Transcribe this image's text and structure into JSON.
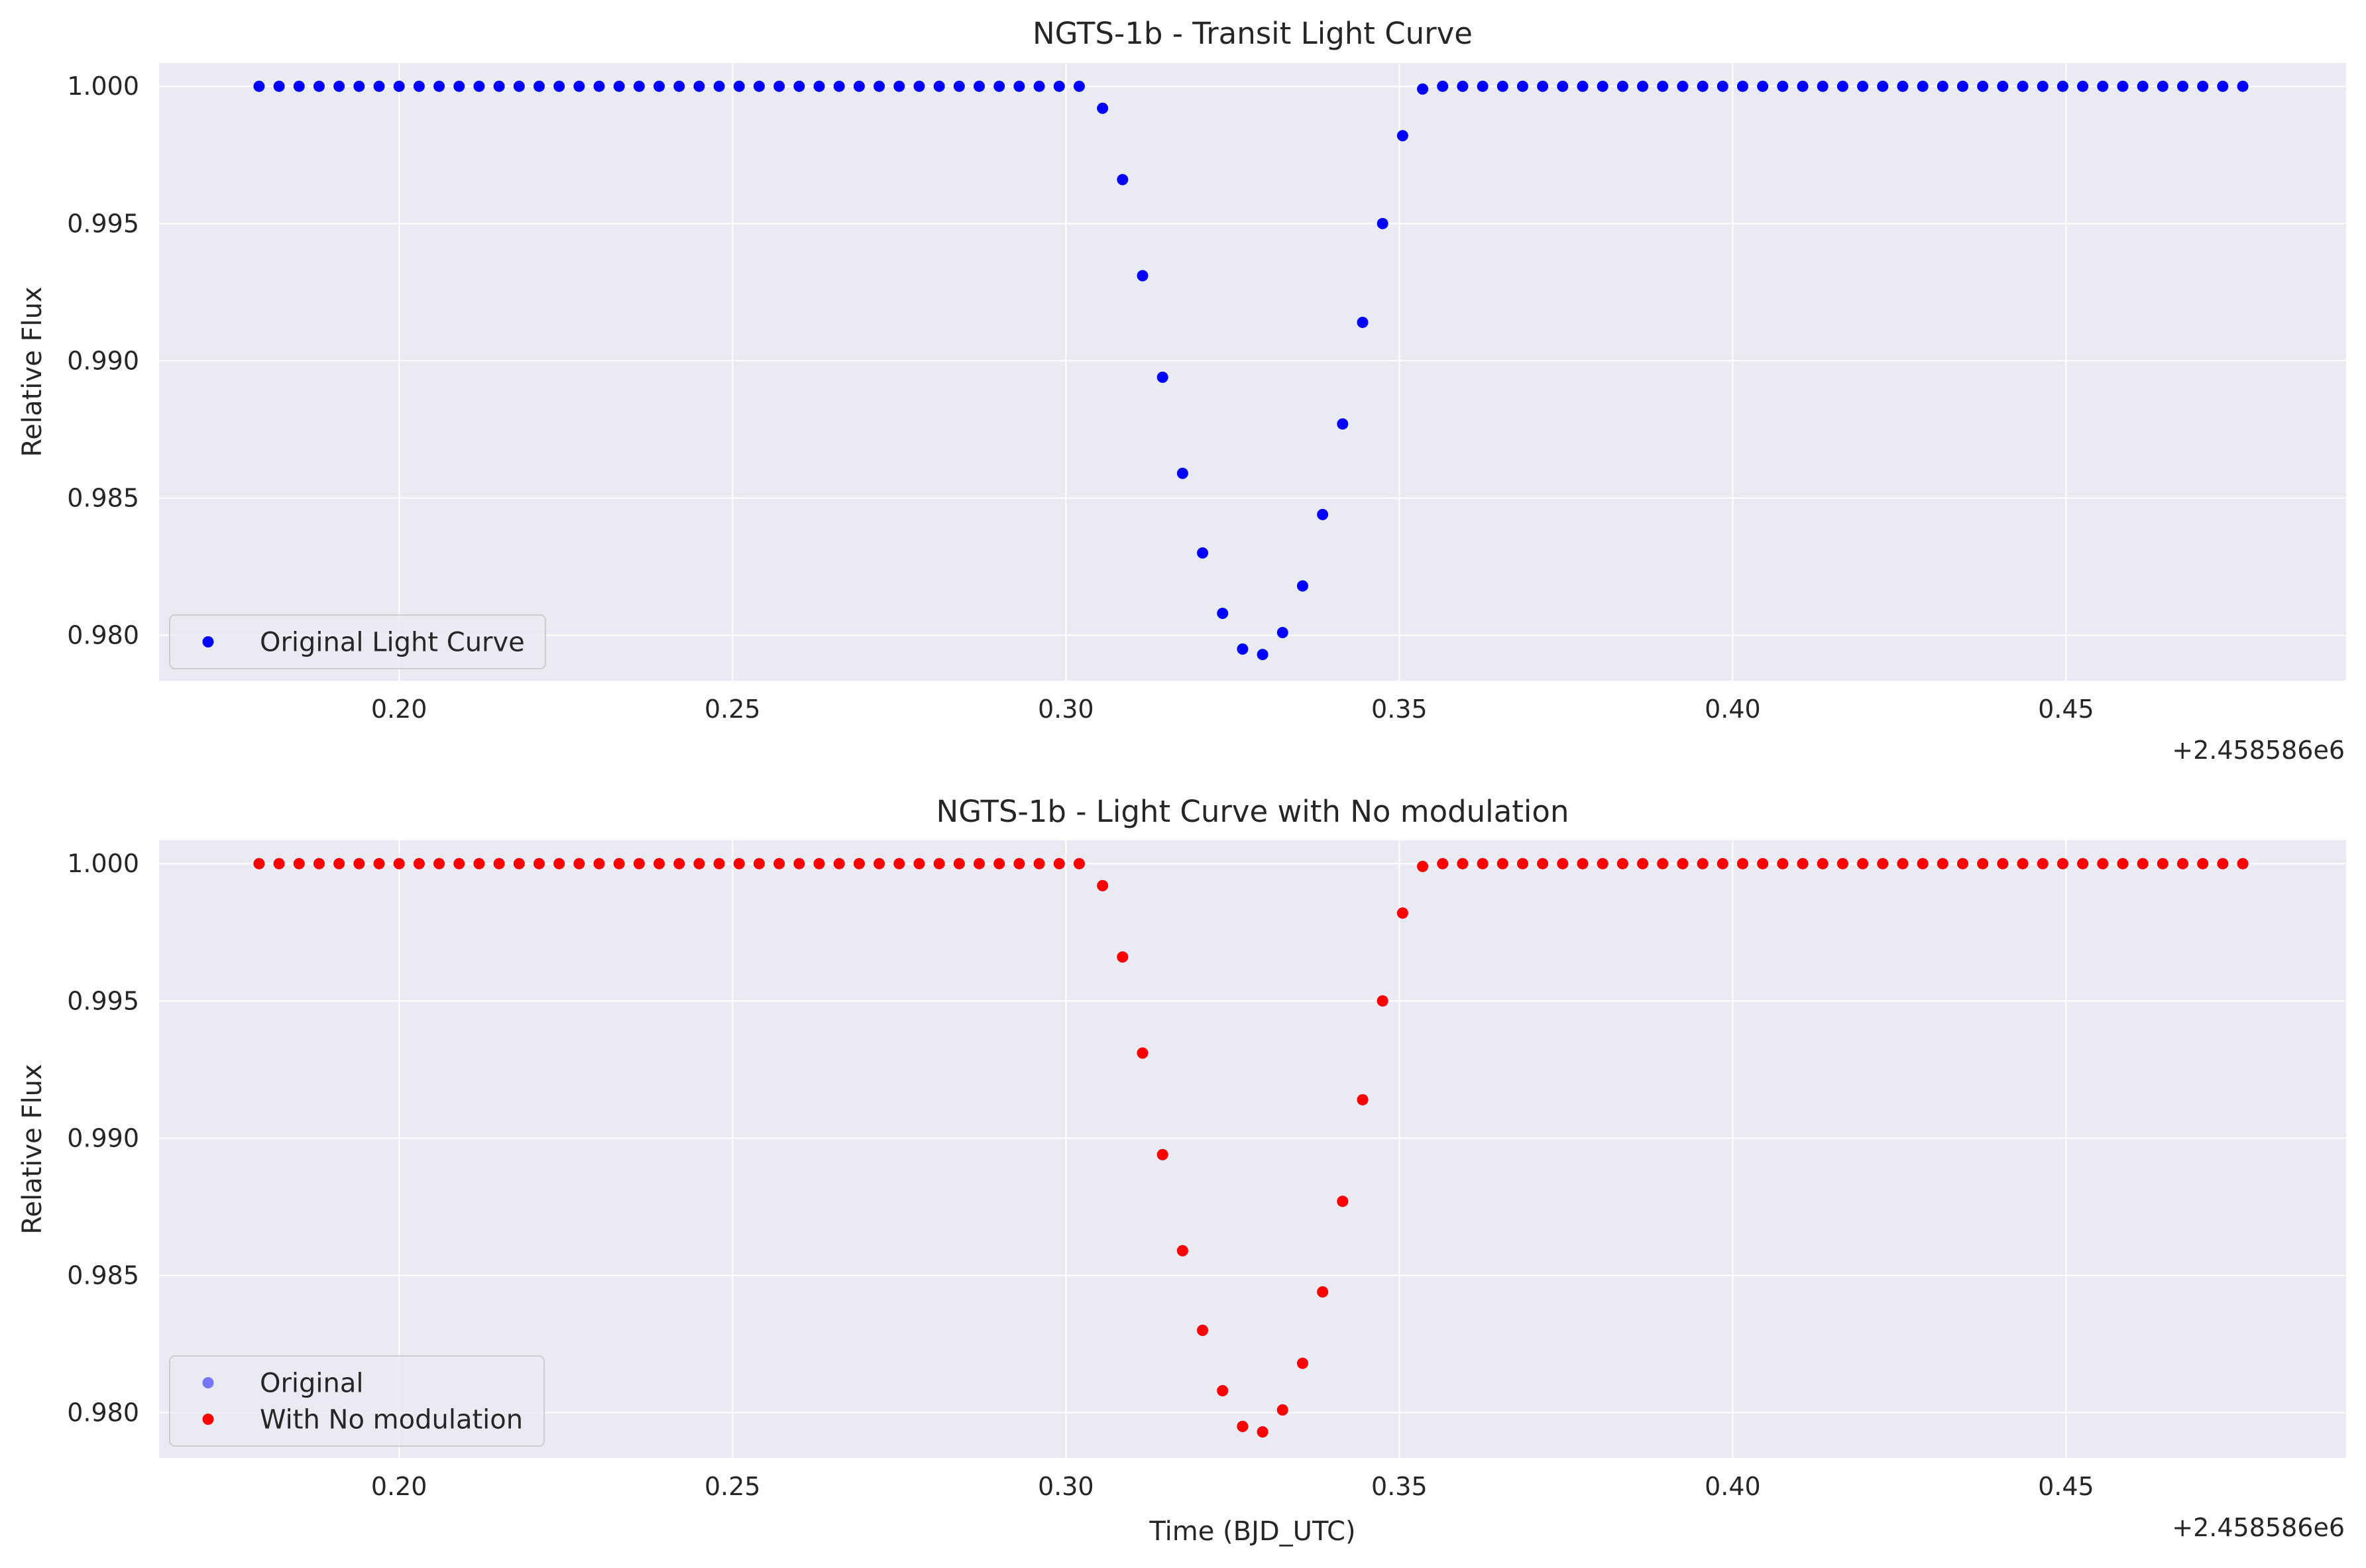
{
  "chart_data": [
    {
      "type": "scatter",
      "title": "NGTS-1b - Transit Light Curve",
      "xlabel": "",
      "ylabel": "Relative Flux",
      "x_offset_label": "+2.458586e6",
      "x_offset": 2458586,
      "xlim": [
        0.164,
        0.492
      ],
      "ylim": [
        0.97835,
        1.00085
      ],
      "xticks": [
        0.2,
        0.25,
        0.3,
        0.35,
        0.4,
        0.45
      ],
      "xtick_labels": [
        "0.20",
        "0.25",
        "0.30",
        "0.35",
        "0.40",
        "0.45"
      ],
      "yticks": [
        0.98,
        0.985,
        0.99,
        0.995,
        1.0
      ],
      "ytick_labels": [
        "0.980",
        "0.985",
        "0.990",
        "0.995",
        "1.000"
      ],
      "grid": true,
      "legend_position": "lower-left",
      "series": [
        {
          "name": "Original Light Curve",
          "color": "#0000ff",
          "x": [
            0.179,
            0.182,
            0.185,
            0.188,
            0.191,
            0.194,
            0.197,
            0.2,
            0.203,
            0.206,
            0.209,
            0.212,
            0.215,
            0.218,
            0.221,
            0.224,
            0.227,
            0.23,
            0.233,
            0.236,
            0.239,
            0.242,
            0.245,
            0.248,
            0.251,
            0.254,
            0.257,
            0.26,
            0.263,
            0.266,
            0.269,
            0.272,
            0.275,
            0.278,
            0.281,
            0.284,
            0.287,
            0.29,
            0.293,
            0.296,
            0.299,
            0.302,
            0.3055,
            0.3085,
            0.3115,
            0.3145,
            0.3175,
            0.3205,
            0.3235,
            0.3265,
            0.3295,
            0.3325,
            0.3355,
            0.3385,
            0.3415,
            0.3445,
            0.3475,
            0.3505,
            0.3535,
            0.3565,
            0.3595,
            0.3625,
            0.3655,
            0.3685,
            0.3715,
            0.3745,
            0.3775,
            0.3805,
            0.3835,
            0.3865,
            0.3895,
            0.3925,
            0.3955,
            0.3985,
            0.4015,
            0.4045,
            0.4075,
            0.4105,
            0.4135,
            0.4165,
            0.4195,
            0.4225,
            0.4255,
            0.4285,
            0.4315,
            0.4345,
            0.4375,
            0.4405,
            0.4435,
            0.4465,
            0.4495,
            0.4525,
            0.4555,
            0.4585,
            0.4615,
            0.4645,
            0.4675,
            0.4705,
            0.4735,
            0.4765
          ],
          "y": [
            1.0,
            1.0,
            1.0,
            1.0,
            1.0,
            1.0,
            1.0,
            1.0,
            1.0,
            1.0,
            1.0,
            1.0,
            1.0,
            1.0,
            1.0,
            1.0,
            1.0,
            1.0,
            1.0,
            1.0,
            1.0,
            1.0,
            1.0,
            1.0,
            1.0,
            1.0,
            1.0,
            1.0,
            1.0,
            1.0,
            1.0,
            1.0,
            1.0,
            1.0,
            1.0,
            1.0,
            1.0,
            1.0,
            1.0,
            1.0,
            1.0,
            1.0,
            0.9992,
            0.9966,
            0.9931,
            0.9894,
            0.9859,
            0.983,
            0.9808,
            0.9795,
            0.9793,
            0.9801,
            0.9818,
            0.9844,
            0.9877,
            0.9914,
            0.995,
            0.9982,
            0.9999,
            1.0,
            1.0,
            1.0,
            1.0,
            1.0,
            1.0,
            1.0,
            1.0,
            1.0,
            1.0,
            1.0,
            1.0,
            1.0,
            1.0,
            1.0,
            1.0,
            1.0,
            1.0,
            1.0,
            1.0,
            1.0,
            1.0,
            1.0,
            1.0,
            1.0,
            1.0,
            1.0,
            1.0,
            1.0,
            1.0,
            1.0,
            1.0,
            1.0,
            1.0,
            1.0,
            1.0,
            1.0,
            1.0,
            1.0,
            1.0,
            1.0
          ]
        }
      ]
    },
    {
      "type": "scatter",
      "title": "NGTS-1b - Light Curve with No modulation",
      "xlabel": "Time (BJD_UTC)",
      "ylabel": "Relative Flux",
      "x_offset_label": "+2.458586e6",
      "x_offset": 2458586,
      "xlim": [
        0.164,
        0.492
      ],
      "ylim": [
        0.97835,
        1.00085
      ],
      "xticks": [
        0.2,
        0.25,
        0.3,
        0.35,
        0.4,
        0.45
      ],
      "xtick_labels": [
        "0.20",
        "0.25",
        "0.30",
        "0.35",
        "0.40",
        "0.45"
      ],
      "yticks": [
        0.98,
        0.985,
        0.99,
        0.995,
        1.0
      ],
      "ytick_labels": [
        "0.980",
        "0.985",
        "0.990",
        "0.995",
        "1.000"
      ],
      "grid": true,
      "legend_position": "lower-left",
      "series": [
        {
          "name": "Original",
          "color": "#0000ff",
          "opacity": 0.5,
          "x": [
            0.179,
            0.182,
            0.185,
            0.188,
            0.191,
            0.194,
            0.197,
            0.2,
            0.203,
            0.206,
            0.209,
            0.212,
            0.215,
            0.218,
            0.221,
            0.224,
            0.227,
            0.23,
            0.233,
            0.236,
            0.239,
            0.242,
            0.245,
            0.248,
            0.251,
            0.254,
            0.257,
            0.26,
            0.263,
            0.266,
            0.269,
            0.272,
            0.275,
            0.278,
            0.281,
            0.284,
            0.287,
            0.29,
            0.293,
            0.296,
            0.299,
            0.302,
            0.3055,
            0.3085,
            0.3115,
            0.3145,
            0.3175,
            0.3205,
            0.3235,
            0.3265,
            0.3295,
            0.3325,
            0.3355,
            0.3385,
            0.3415,
            0.3445,
            0.3475,
            0.3505,
            0.3535,
            0.3565,
            0.3595,
            0.3625,
            0.3655,
            0.3685,
            0.3715,
            0.3745,
            0.3775,
            0.3805,
            0.3835,
            0.3865,
            0.3895,
            0.3925,
            0.3955,
            0.3985,
            0.4015,
            0.4045,
            0.4075,
            0.4105,
            0.4135,
            0.4165,
            0.4195,
            0.4225,
            0.4255,
            0.4285,
            0.4315,
            0.4345,
            0.4375,
            0.4405,
            0.4435,
            0.4465,
            0.4495,
            0.4525,
            0.4555,
            0.4585,
            0.4615,
            0.4645,
            0.4675,
            0.4705,
            0.4735,
            0.4765
          ],
          "y": [
            1.0,
            1.0,
            1.0,
            1.0,
            1.0,
            1.0,
            1.0,
            1.0,
            1.0,
            1.0,
            1.0,
            1.0,
            1.0,
            1.0,
            1.0,
            1.0,
            1.0,
            1.0,
            1.0,
            1.0,
            1.0,
            1.0,
            1.0,
            1.0,
            1.0,
            1.0,
            1.0,
            1.0,
            1.0,
            1.0,
            1.0,
            1.0,
            1.0,
            1.0,
            1.0,
            1.0,
            1.0,
            1.0,
            1.0,
            1.0,
            1.0,
            1.0,
            0.9992,
            0.9966,
            0.9931,
            0.9894,
            0.9859,
            0.983,
            0.9808,
            0.9795,
            0.9793,
            0.9801,
            0.9818,
            0.9844,
            0.9877,
            0.9914,
            0.995,
            0.9982,
            0.9999,
            1.0,
            1.0,
            1.0,
            1.0,
            1.0,
            1.0,
            1.0,
            1.0,
            1.0,
            1.0,
            1.0,
            1.0,
            1.0,
            1.0,
            1.0,
            1.0,
            1.0,
            1.0,
            1.0,
            1.0,
            1.0,
            1.0,
            1.0,
            1.0,
            1.0,
            1.0,
            1.0,
            1.0,
            1.0,
            1.0,
            1.0,
            1.0,
            1.0,
            1.0,
            1.0,
            1.0,
            1.0,
            1.0,
            1.0,
            1.0,
            1.0
          ]
        },
        {
          "name": "With No modulation",
          "color": "#ff0000",
          "x": [
            0.179,
            0.182,
            0.185,
            0.188,
            0.191,
            0.194,
            0.197,
            0.2,
            0.203,
            0.206,
            0.209,
            0.212,
            0.215,
            0.218,
            0.221,
            0.224,
            0.227,
            0.23,
            0.233,
            0.236,
            0.239,
            0.242,
            0.245,
            0.248,
            0.251,
            0.254,
            0.257,
            0.26,
            0.263,
            0.266,
            0.269,
            0.272,
            0.275,
            0.278,
            0.281,
            0.284,
            0.287,
            0.29,
            0.293,
            0.296,
            0.299,
            0.302,
            0.3055,
            0.3085,
            0.3115,
            0.3145,
            0.3175,
            0.3205,
            0.3235,
            0.3265,
            0.3295,
            0.3325,
            0.3355,
            0.3385,
            0.3415,
            0.3445,
            0.3475,
            0.3505,
            0.3535,
            0.3565,
            0.3595,
            0.3625,
            0.3655,
            0.3685,
            0.3715,
            0.3745,
            0.3775,
            0.3805,
            0.3835,
            0.3865,
            0.3895,
            0.3925,
            0.3955,
            0.3985,
            0.4015,
            0.4045,
            0.4075,
            0.4105,
            0.4135,
            0.4165,
            0.4195,
            0.4225,
            0.4255,
            0.4285,
            0.4315,
            0.4345,
            0.4375,
            0.4405,
            0.4435,
            0.4465,
            0.4495,
            0.4525,
            0.4555,
            0.4585,
            0.4615,
            0.4645,
            0.4675,
            0.4705,
            0.4735,
            0.4765
          ],
          "y": [
            1.0,
            1.0,
            1.0,
            1.0,
            1.0,
            1.0,
            1.0,
            1.0,
            1.0,
            1.0,
            1.0,
            1.0,
            1.0,
            1.0,
            1.0,
            1.0,
            1.0,
            1.0,
            1.0,
            1.0,
            1.0,
            1.0,
            1.0,
            1.0,
            1.0,
            1.0,
            1.0,
            1.0,
            1.0,
            1.0,
            1.0,
            1.0,
            1.0,
            1.0,
            1.0,
            1.0,
            1.0,
            1.0,
            1.0,
            1.0,
            1.0,
            1.0,
            0.9992,
            0.9966,
            0.9931,
            0.9894,
            0.9859,
            0.983,
            0.9808,
            0.9795,
            0.9793,
            0.9801,
            0.9818,
            0.9844,
            0.9877,
            0.9914,
            0.995,
            0.9982,
            0.9999,
            1.0,
            1.0,
            1.0,
            1.0,
            1.0,
            1.0,
            1.0,
            1.0,
            1.0,
            1.0,
            1.0,
            1.0,
            1.0,
            1.0,
            1.0,
            1.0,
            1.0,
            1.0,
            1.0,
            1.0,
            1.0,
            1.0,
            1.0,
            1.0,
            1.0,
            1.0,
            1.0,
            1.0,
            1.0,
            1.0,
            1.0,
            1.0,
            1.0,
            1.0,
            1.0,
            1.0,
            1.0,
            1.0,
            1.0,
            1.0,
            1.0
          ]
        }
      ]
    }
  ]
}
